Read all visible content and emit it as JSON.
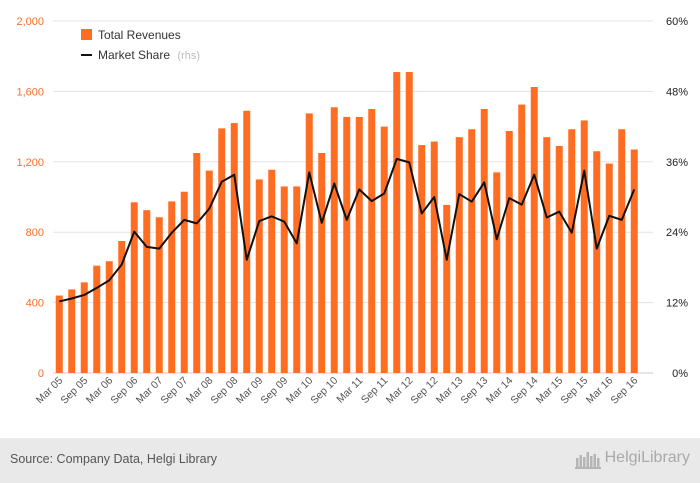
{
  "chart_data": {
    "type": "bar",
    "categories": [
      "Mar 05",
      "Jun 05",
      "Sep 05",
      "Dec 05",
      "Mar 06",
      "Jun 06",
      "Sep 06",
      "Dec 06",
      "Mar 07",
      "Jun 07",
      "Sep 07",
      "Dec 07",
      "Mar 08",
      "Jun 08",
      "Sep 08",
      "Dec 08",
      "Mar 09",
      "Jun 09",
      "Sep 09",
      "Dec 09",
      "Mar 10",
      "Jun 10",
      "Sep 10",
      "Dec 10",
      "Mar 11",
      "Jun 11",
      "Sep 11",
      "Dec 11",
      "Mar 12",
      "Jun 12",
      "Sep 12",
      "Dec 12",
      "Mar 13",
      "Jun 13",
      "Sep 13",
      "Dec 13",
      "Mar 14",
      "Jun 14",
      "Sep 14",
      "Dec 14",
      "Mar 15",
      "Jun 15",
      "Sep 15",
      "Dec 15",
      "Mar 16",
      "Jun 16",
      "Sep 16",
      "Dec 16"
    ],
    "x_tick_labels": [
      "Mar 05",
      "Sep 05",
      "Mar 06",
      "Sep 06",
      "Mar 07",
      "Sep 07",
      "Mar 08",
      "Sep 08",
      "Mar 09",
      "Sep 09",
      "Mar 10",
      "Sep 10",
      "Mar 11",
      "Sep 11",
      "Mar 12",
      "Sep 12",
      "Mar 13",
      "Sep 13",
      "Mar 14",
      "Sep 14",
      "Mar 15",
      "Sep 15",
      "Mar 16",
      "Sep 16"
    ],
    "series": [
      {
        "name": "Total Revenues",
        "type": "bar",
        "axis": "left",
        "color": "#ff6d23",
        "values": [
          440,
          475,
          515,
          610,
          635,
          750,
          970,
          925,
          885,
          975,
          1030,
          1250,
          1150,
          1390,
          1420,
          1490,
          1100,
          1155,
          1060,
          1060,
          1475,
          1250,
          1510,
          1455,
          1455,
          1500,
          1400,
          1710,
          1710,
          1295,
          1315,
          955,
          1340,
          1385,
          1500,
          1140,
          1375,
          1525,
          1625,
          1340,
          1290,
          1385,
          1435,
          1260,
          1190,
          1385,
          1270,
          0
        ]
      },
      {
        "name": "Market Share",
        "name_suffix": "(rhs)",
        "type": "line",
        "axis": "right",
        "color": "#111111",
        "values": [
          0.122,
          0.127,
          0.133,
          0.145,
          0.158,
          0.185,
          0.241,
          0.215,
          0.212,
          0.239,
          0.261,
          0.255,
          0.28,
          0.326,
          0.338,
          0.193,
          0.259,
          0.267,
          0.258,
          0.221,
          0.342,
          0.256,
          0.323,
          0.261,
          0.313,
          0.293,
          0.306,
          0.365,
          0.359,
          0.272,
          0.3,
          0.193,
          0.305,
          0.292,
          0.325,
          0.228,
          0.298,
          0.287,
          0.338,
          0.265,
          0.275,
          0.239,
          0.345,
          0.212,
          0.268,
          0.261,
          0.313,
          null
        ]
      }
    ],
    "y_left": {
      "min": 0,
      "max": 2000,
      "ticks": [
        0,
        400,
        800,
        1200,
        1600,
        2000
      ],
      "tick_labels": [
        "0",
        "400",
        "800",
        "1,200",
        "1,600",
        "2,000"
      ],
      "color": "#ff6d23"
    },
    "y_right": {
      "min": 0,
      "max": 0.6,
      "ticks": [
        0,
        0.12,
        0.24,
        0.36,
        0.48,
        0.6
      ],
      "tick_labels": [
        "0%",
        "12%",
        "24%",
        "36%",
        "48%",
        "60%"
      ]
    },
    "grid": true,
    "legend_position": "top-left"
  },
  "footer": {
    "source": "Source: Company Data, Helgi Library",
    "brand": "HelgiLibrary"
  }
}
